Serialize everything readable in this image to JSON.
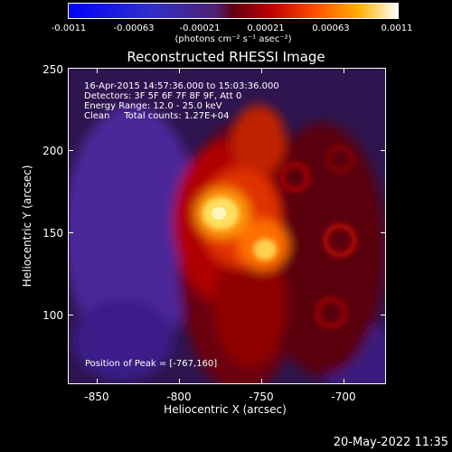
{
  "colorbar": {
    "ticks": [
      "-0.0011",
      "-0.00063",
      "-0.00021",
      "0.00021",
      "0.00063",
      "0.0011"
    ],
    "units": "(photons cm⁻² s⁻¹ asec⁻²)"
  },
  "title": "Reconstructed RHESSI Image",
  "info": {
    "time": "16-Apr-2015 14:57:36.000 to 15:03:36.000",
    "detectors": "Detectors: 3F 5F 6F 7F 8F 9F, Att 0",
    "energy": "Energy Range: 12.0 - 25.0 keV",
    "clean": "Clean     Total counts: 1.27E+04"
  },
  "peak_text": "Position of Peak = [-767,160]",
  "axes": {
    "xlabel": "Heliocentric X (arcsec)",
    "ylabel": "Heliocentric Y (arcsec)",
    "xticks": [
      "-850",
      "-800",
      "-750",
      "-700"
    ],
    "yticks": [
      "250",
      "200",
      "150",
      "100"
    ]
  },
  "timestamp": "20-May-2022 11:35",
  "colors": {
    "background": "#000000",
    "negative": "#3a1a8a",
    "positive": "#ff6000",
    "peak": "#fff6a0"
  }
}
